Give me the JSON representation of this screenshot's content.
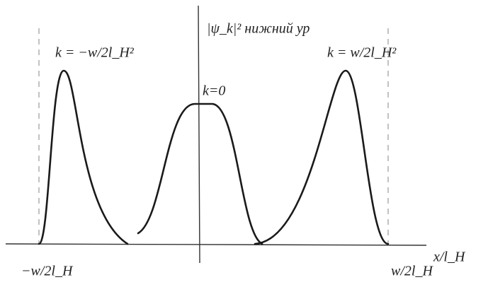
{
  "labels": {
    "axis_top": "|ψ_k|² нижний ур",
    "peak_left": "k = −w/2l_H²",
    "peak_center": "k=0",
    "peak_right": "k = w/2l_H²",
    "x_left": "−w/2l_H",
    "x_right": "w/2l_H",
    "x_axis": "x/l_H"
  }
}
